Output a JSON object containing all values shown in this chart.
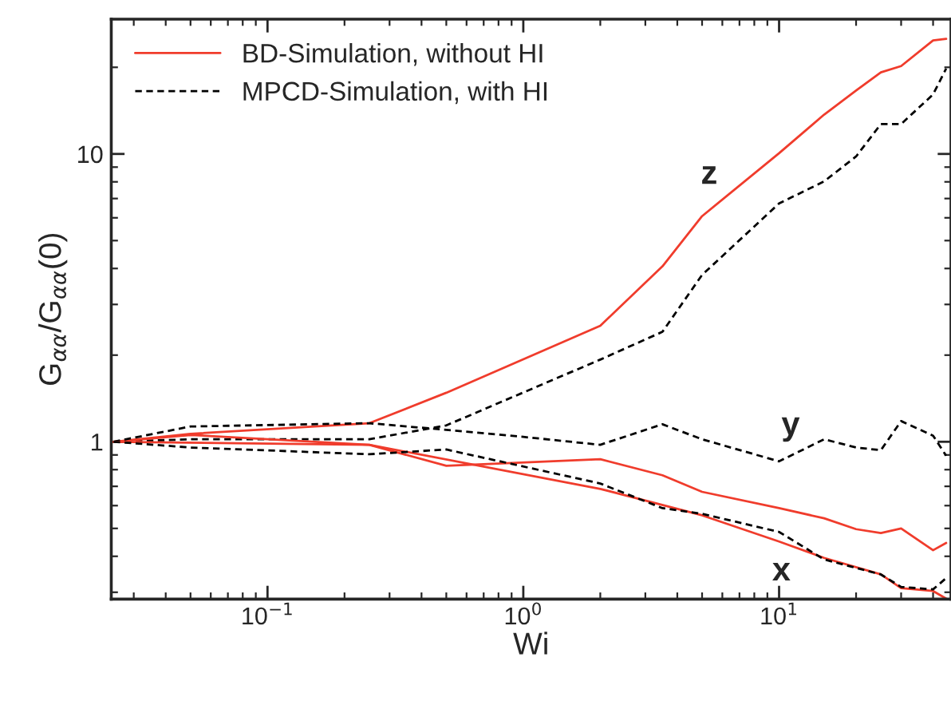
{
  "chart_data": {
    "type": "line",
    "xlabel": "Wi",
    "ylabel": "G$_{αα}$/G$_{αα}$(0)",
    "log": "xy",
    "grid": false,
    "legend": "top left",
    "marker": "none",
    "xlim": [
      0.0245,
      47
    ],
    "ylim": [
      0.284,
      29.4
    ],
    "xticks": [
      {
        "value": 0.1,
        "label": "10$^{−1}$"
      },
      {
        "value": 1,
        "label": "10$^{0}$"
      },
      {
        "value": 10,
        "label": "10$^{1}$"
      }
    ],
    "yticks": [
      1,
      10
    ],
    "series": [
      {
        "name": "BD-Simulation, without HI",
        "color": "#f03c2c",
        "line_style": "solid",
        "x": [
          0.025,
          0.05,
          0.25,
          0.5,
          2,
          3.5,
          5,
          10,
          15,
          20,
          25,
          30,
          40,
          45
        ],
        "values": [
          1,
          1.066,
          1.16,
          1.48,
          2.53,
          4.07,
          6.08,
          10.06,
          13.7,
          16.6,
          19.2,
          20.2,
          24.8,
          25.1
        ]
      },
      {
        "name": "MPCD-Simulation, with HI",
        "color": "#000000",
        "line_style": "dashed",
        "x": [
          0.025,
          0.05,
          0.1,
          0.25,
          0.5,
          2,
          3.5,
          5,
          10,
          15,
          20,
          25,
          30,
          40,
          45
        ],
        "values": [
          1,
          1.02,
          1.02,
          1.02,
          1.14,
          1.93,
          2.41,
          3.8,
          6.73,
          8.03,
          9.8,
          12.7,
          12.7,
          16.1,
          19.8
        ]
      },
      {
        "color": "#f03c2c",
        "line_style": "solid",
        "x": [
          0.025,
          0.05,
          0.25,
          0.5,
          2,
          3.5,
          5,
          10,
          15,
          20,
          25,
          30,
          40,
          45
        ],
        "values": [
          1,
          1.056,
          0.976,
          0.825,
          0.87,
          0.765,
          0.67,
          0.588,
          0.542,
          0.497,
          0.482,
          0.5,
          0.42,
          0.445
        ]
      },
      {
        "color": "#000000",
        "line_style": "dashed",
        "x": [
          0.025,
          0.05,
          0.25,
          0.5,
          1,
          2,
          3.5,
          5,
          10,
          15,
          20,
          25,
          30,
          40,
          45
        ],
        "values": [
          1,
          1.13,
          1.16,
          1.1,
          1.04,
          0.976,
          1.15,
          1.02,
          0.855,
          1.02,
          0.955,
          0.935,
          1.18,
          1.05,
          0.894
        ]
      },
      {
        "color": "#f03c2c",
        "line_style": "solid",
        "x": [
          0.025,
          0.25,
          2,
          5,
          10,
          15,
          25,
          30,
          40,
          45
        ],
        "values": [
          1,
          0.976,
          0.686,
          0.555,
          0.45,
          0.395,
          0.346,
          0.31,
          0.303,
          0.285
        ]
      },
      {
        "color": "#000000",
        "line_style": "dashed",
        "x": [
          0.025,
          0.05,
          0.25,
          0.5,
          2,
          3.5,
          5,
          10,
          15,
          25,
          30,
          40,
          45
        ],
        "values": [
          1,
          0.955,
          0.905,
          0.94,
          0.716,
          0.588,
          0.562,
          0.486,
          0.39,
          0.346,
          0.313,
          0.307,
          0.336
        ]
      }
    ],
    "annotations": [
      "z",
      "y",
      "x"
    ]
  }
}
